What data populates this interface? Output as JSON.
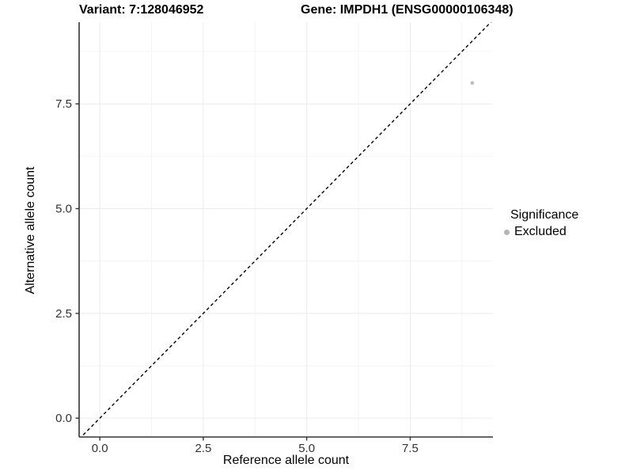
{
  "chart_data": {
    "type": "scatter",
    "title_left": "Variant: 7:128046952",
    "title_right": "Gene: IMPDH1 (ENSG00000106348)",
    "xlabel": "Reference allele count",
    "ylabel": "Alternative allele count",
    "x_ticks": [
      0.0,
      2.5,
      5.0,
      7.5
    ],
    "y_ticks": [
      0.0,
      2.5,
      5.0,
      7.5
    ],
    "x_tick_labels": [
      "0.0",
      "2.5",
      "5.0",
      "7.5"
    ],
    "y_tick_labels": [
      "0.0",
      "2.5",
      "5.0",
      "7.5"
    ],
    "xlim": [
      -0.5,
      9.5
    ],
    "ylim": [
      -0.45,
      9.45
    ],
    "grid": true,
    "series": [
      {
        "name": "Excluded",
        "points": [
          {
            "x": 9,
            "y": 8
          }
        ]
      }
    ],
    "identity_line": {
      "type": "dashed",
      "slope": 1,
      "intercept": 0,
      "color": "#000000"
    },
    "legend": {
      "position": "right",
      "title": "Significance",
      "entries": [
        {
          "label": "Excluded",
          "color": "#b3b3b3"
        }
      ]
    },
    "colors": {
      "point": "#bdbdbd",
      "grid_major": "#ebebeb",
      "grid_minor": "#f4f4f4",
      "axis_line": "#333333",
      "tick_label": "#333333"
    }
  }
}
